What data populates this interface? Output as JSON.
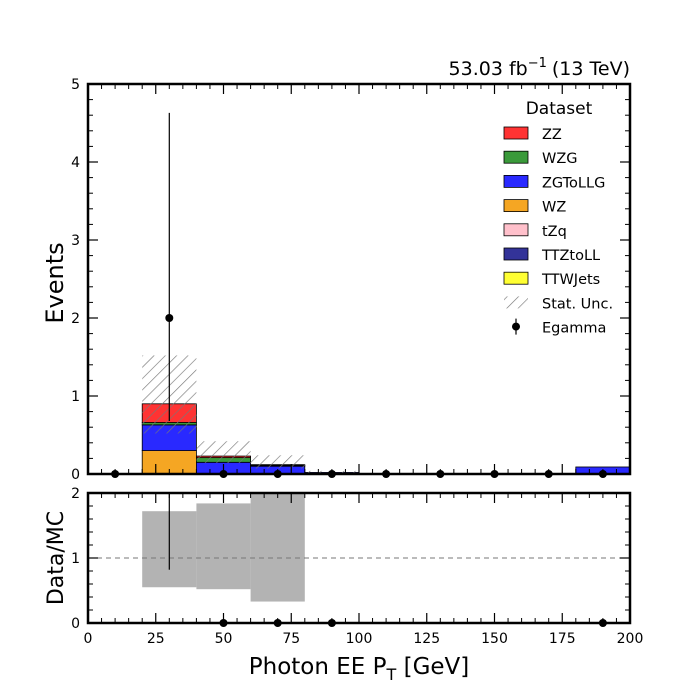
{
  "chart_data": {
    "type": "bar",
    "stacked": true,
    "lumi_label": "53.03 fb",
    "lumi_exp": "−1",
    "lumi_energy": "(13 TeV)",
    "xlabel_main": "Photon EE P",
    "xlabel_sub": "T",
    "xlabel_unit": " [GeV]",
    "ylabel": "Events",
    "ratio_ylabel": "Data/MC",
    "xlim": [
      0,
      200
    ],
    "ylim": [
      0,
      5
    ],
    "ratio_ylim": [
      0,
      2
    ],
    "x_ticks": [
      "0",
      "25",
      "50",
      "75",
      "100",
      "125",
      "150",
      "175",
      "200"
    ],
    "y_ticks": [
      "0",
      "1",
      "2",
      "3",
      "4",
      "5"
    ],
    "ratio_y_ticks": [
      "0",
      "1",
      "2"
    ],
    "bin_edges": [
      0,
      20,
      40,
      60,
      80,
      100,
      120,
      140,
      160,
      180,
      200
    ],
    "legend_title": "Dataset",
    "legend_position": "top-right",
    "series": [
      {
        "name": "WZ",
        "color": "#f5a623",
        "values": [
          0,
          0.3,
          0,
          0,
          0,
          0,
          0,
          0,
          0,
          0
        ]
      },
      {
        "name": "ZGToLLG",
        "color": "#2929ff",
        "values": [
          0,
          0.33,
          0.15,
          0.1,
          0.02,
          0,
          0,
          0,
          0,
          0.09
        ]
      },
      {
        "name": "WZG",
        "color": "#3a9a3a",
        "values": [
          0,
          0.03,
          0.06,
          0.01,
          0,
          0,
          0,
          0,
          0,
          0
        ]
      },
      {
        "name": "ZZ",
        "color": "#ff3333",
        "values": [
          0,
          0.24,
          0.02,
          0.01,
          0,
          0,
          0,
          0,
          0,
          0
        ]
      },
      {
        "name": "tZq",
        "color": "#ffc0cb",
        "values": [
          0,
          0,
          0,
          0,
          0,
          0,
          0,
          0,
          0,
          0
        ]
      },
      {
        "name": "TTZtoLL",
        "color": "#333399",
        "values": [
          0,
          0,
          0,
          0,
          0,
          0,
          0,
          0,
          0,
          0
        ]
      },
      {
        "name": "TTWJets",
        "color": "#ffff33",
        "values": [
          0,
          0,
          0,
          0,
          0,
          0,
          0,
          0,
          0,
          0
        ]
      }
    ],
    "legend_order": [
      "ZZ",
      "WZG",
      "ZGToLLG",
      "WZ",
      "tZq",
      "TTZtoLL",
      "TTWJets"
    ],
    "stat_unc": {
      "name": "Stat. Unc.",
      "low": [
        0,
        0.52,
        0.14,
        0.07,
        0,
        0,
        0,
        0,
        0,
        0
      ],
      "high": [
        0,
        1.52,
        0.42,
        0.24,
        0.04,
        0,
        0,
        0,
        0,
        0
      ]
    },
    "data": {
      "name": "Egamma",
      "x": [
        10,
        30,
        50,
        70,
        90,
        110,
        130,
        150,
        170,
        190
      ],
      "y": [
        0,
        2,
        0,
        0,
        0,
        0,
        0,
        0,
        0,
        0
      ],
      "err_up": [
        0,
        2.63,
        0,
        0,
        0,
        0,
        0,
        0,
        0,
        0
      ],
      "err_down": [
        0,
        1.32,
        0,
        0,
        0,
        0,
        0,
        0,
        0,
        0
      ]
    },
    "ratio": {
      "x": [
        30,
        50,
        70,
        90,
        190
      ],
      "y": [
        2.22,
        0,
        0,
        0,
        0
      ],
      "err_low": [
        0.82,
        0,
        0,
        0,
        0
      ],
      "err_high": [
        2.0,
        0,
        0,
        0,
        0
      ],
      "unc_low": [
        0,
        0.55,
        0.52,
        0.33,
        0,
        0,
        0,
        0,
        0,
        0
      ],
      "unc_high": [
        0,
        1.72,
        1.84,
        2.0,
        0,
        0,
        0,
        0,
        0,
        0
      ],
      "reference_line": 1
    }
  }
}
